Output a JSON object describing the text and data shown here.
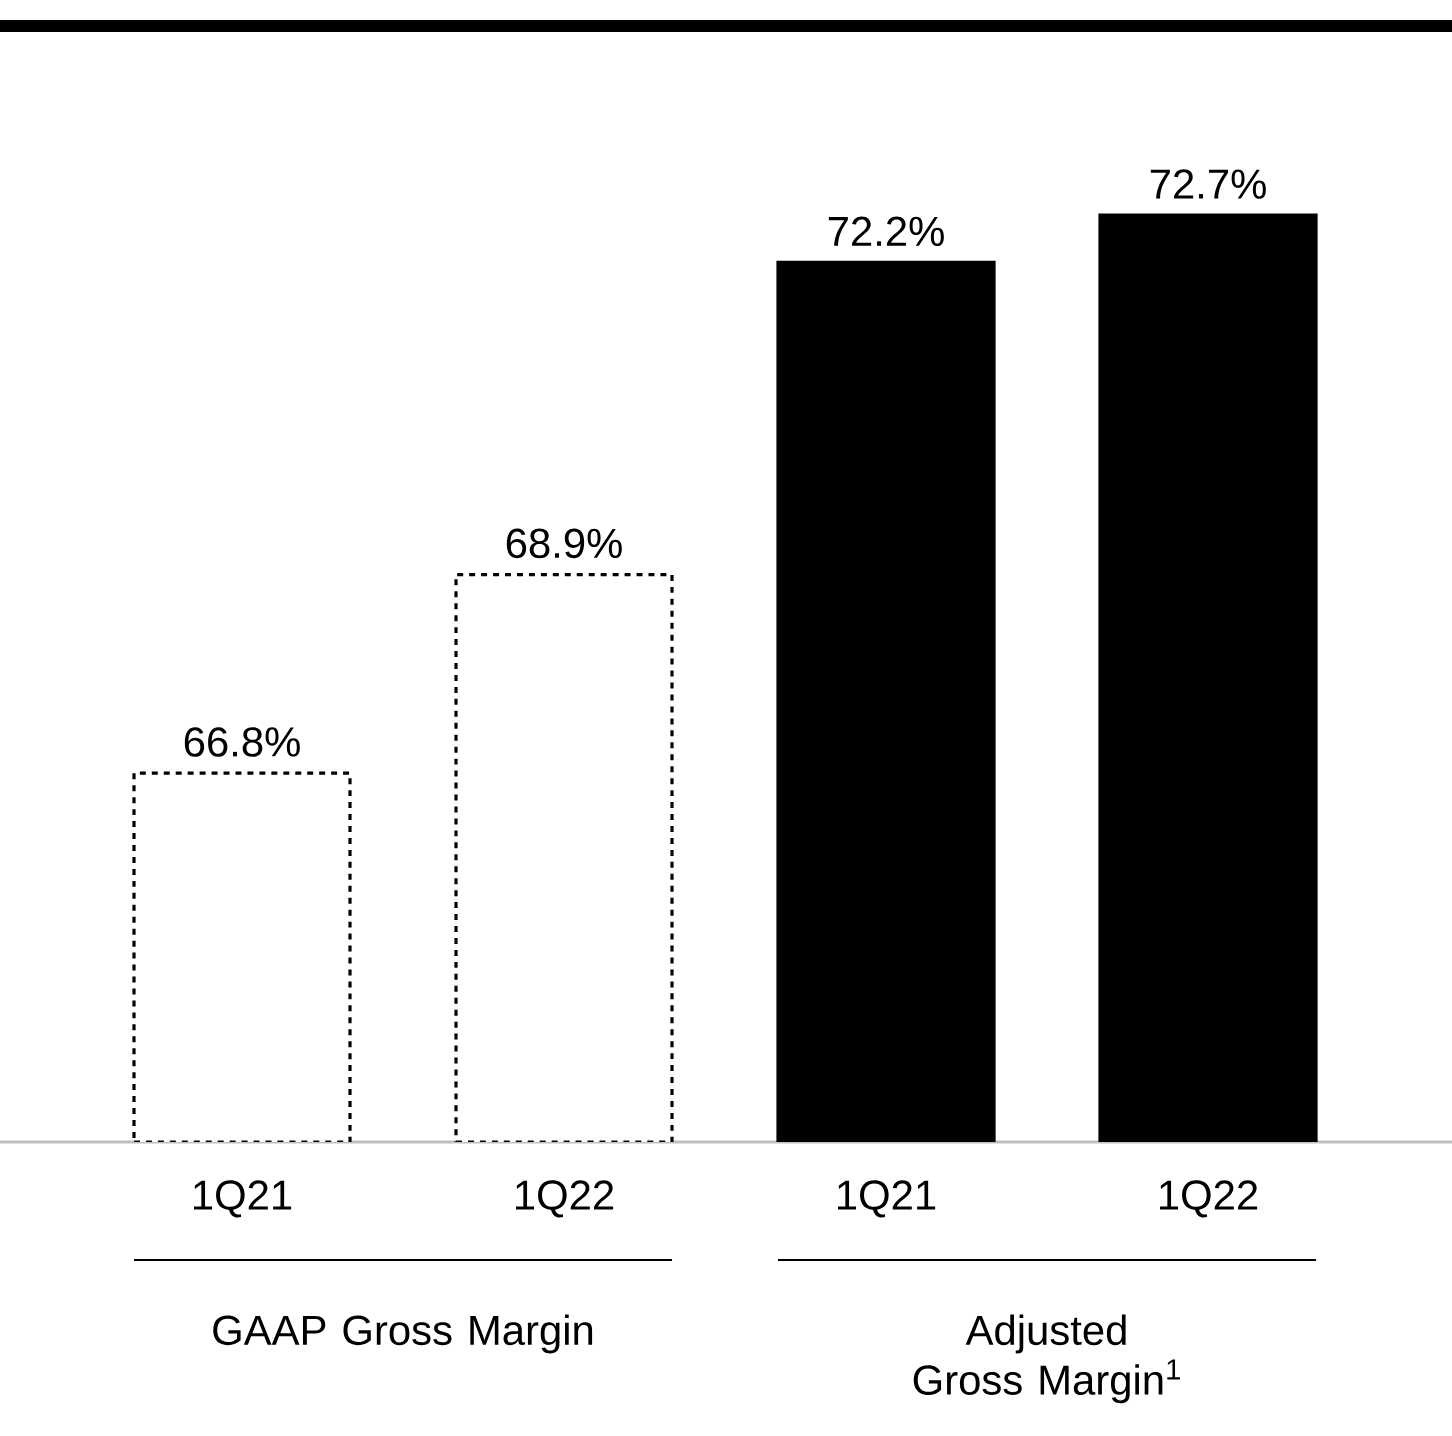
{
  "chart_data": {
    "type": "bar",
    "categories": [
      "1Q21",
      "1Q22",
      "1Q21",
      "1Q22"
    ],
    "series": [
      {
        "color": "#ffffff",
        "line_style": "dashed",
        "values": [
          66.8,
          68.9,
          null,
          null
        ],
        "value_labels": [
          "66.8%",
          "68.9%",
          null,
          null
        ]
      },
      {
        "color": "#000000",
        "line_style": "solid",
        "values": [
          null,
          null,
          72.2,
          72.7
        ],
        "value_labels": [
          null,
          null,
          "72.2%",
          "72.7%"
        ]
      }
    ],
    "ylim": [
      62.9,
      74.7
    ],
    "tick_labels": "x",
    "annotations": [
      "GAAP Gross Margin",
      "Adjusted Gross Margin$^{1}$"
    ]
  }
}
